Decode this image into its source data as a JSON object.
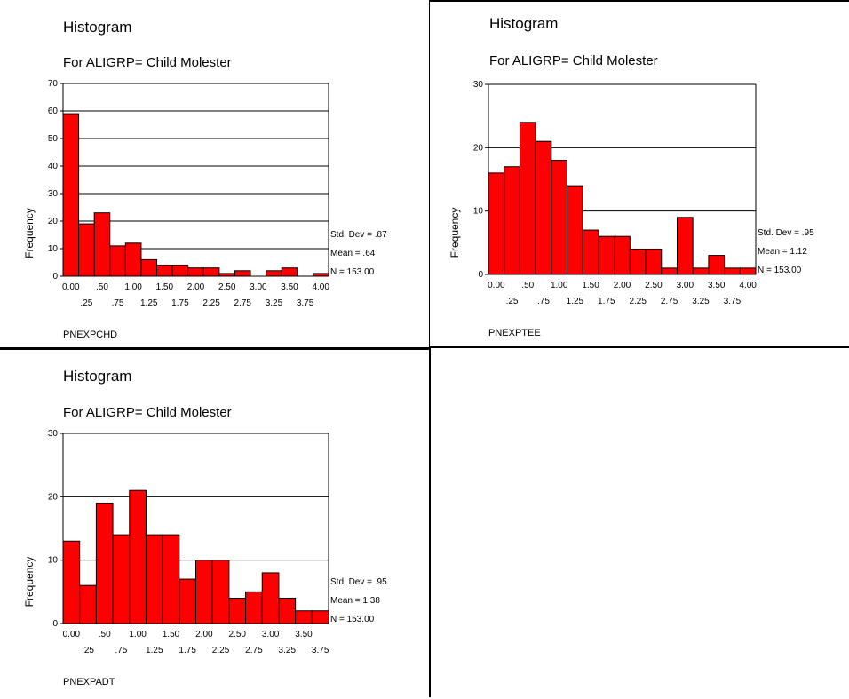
{
  "chart_data": [
    {
      "type": "bar",
      "title": "Histogram",
      "subtitle": "For ALIGRP= Child Molester",
      "ylabel": "Frequency",
      "xlabel": "PNEXPCHD",
      "ylim": [
        0,
        70
      ],
      "yticks": [
        0,
        10,
        20,
        30,
        40,
        50,
        60,
        70
      ],
      "xlim": [
        -0.125,
        4.125
      ],
      "xticks_top": [
        "0.00",
        ".50",
        "1.00",
        "1.50",
        "2.00",
        "2.50",
        "3.00",
        "3.50",
        "4.00"
      ],
      "xticks_bottom": [
        ".25",
        ".75",
        "1.25",
        "1.75",
        "2.25",
        "2.75",
        "3.25",
        "3.75"
      ],
      "grid": true,
      "bin_width": 0.25,
      "categories": [
        "0.00",
        ".25",
        ".50",
        ".75",
        "1.00",
        "1.25",
        "1.50",
        "1.75",
        "2.00",
        "2.25",
        "2.50",
        "2.75",
        "3.00",
        "3.25",
        "3.50",
        "3.75",
        "4.00"
      ],
      "values": [
        59,
        19,
        23,
        11,
        12,
        6,
        4,
        4,
        3,
        3,
        1,
        2,
        0,
        2,
        3,
        0,
        1
      ],
      "stats": [
        "Std. Dev = .87",
        "Mean = .64",
        "N = 153.00"
      ],
      "bar_color": "#ff0000"
    },
    {
      "type": "bar",
      "title": "Histogram",
      "subtitle": "For ALIGRP= Child Molester",
      "ylabel": "Frequency",
      "xlabel": "PNEXPTEE",
      "ylim": [
        0,
        30
      ],
      "yticks": [
        0,
        10,
        20,
        30
      ],
      "xlim": [
        -0.125,
        4.125
      ],
      "xticks_top": [
        "0.00",
        ".50",
        "1.00",
        "1.50",
        "2.00",
        "2.50",
        "3.00",
        "3.50",
        "4.00"
      ],
      "xticks_bottom": [
        ".25",
        ".75",
        "1.25",
        "1.75",
        "2.25",
        "2.75",
        "3.25",
        "3.75"
      ],
      "grid": true,
      "bin_width": 0.25,
      "categories": [
        "0.00",
        ".25",
        ".50",
        ".75",
        "1.00",
        "1.25",
        "1.50",
        "1.75",
        "2.00",
        "2.25",
        "2.50",
        "2.75",
        "3.00",
        "3.25",
        "3.50",
        "3.75",
        "4.00"
      ],
      "values": [
        16,
        17,
        24,
        21,
        18,
        14,
        7,
        6,
        6,
        4,
        4,
        1,
        9,
        1,
        3,
        1,
        1
      ],
      "stats": [
        "Std. Dev = .95",
        "Mean = 1.12",
        "N = 153.00"
      ],
      "bar_color": "#ff0000"
    },
    {
      "type": "bar",
      "title": "Histogram",
      "subtitle": "For ALIGRP= Child Molester",
      "ylabel": "Frequency",
      "xlabel": "PNEXPADT",
      "ylim": [
        0,
        30
      ],
      "yticks": [
        0,
        10,
        20,
        30
      ],
      "xlim": [
        -0.125,
        3.875
      ],
      "xticks_top": [
        "0.00",
        ".50",
        "1.00",
        "1.50",
        "2.00",
        "2.50",
        "3.00",
        "3.50"
      ],
      "xticks_bottom": [
        ".25",
        ".75",
        "1.25",
        "1.75",
        "2.25",
        "2.75",
        "3.25",
        "3.75"
      ],
      "grid": true,
      "bin_width": 0.25,
      "categories": [
        "0.00",
        ".25",
        ".50",
        ".75",
        "1.00",
        "1.25",
        "1.50",
        "1.75",
        "2.00",
        "2.25",
        "2.50",
        "2.75",
        "3.00",
        "3.25",
        "3.50",
        "3.75"
      ],
      "values": [
        13,
        6,
        19,
        14,
        21,
        14,
        14,
        7,
        10,
        10,
        4,
        5,
        8,
        4,
        2,
        2
      ],
      "stats": [
        "Std. Dev = .95",
        "Mean = 1.38",
        "N = 153.00"
      ],
      "bar_color": "#ff0000"
    }
  ]
}
